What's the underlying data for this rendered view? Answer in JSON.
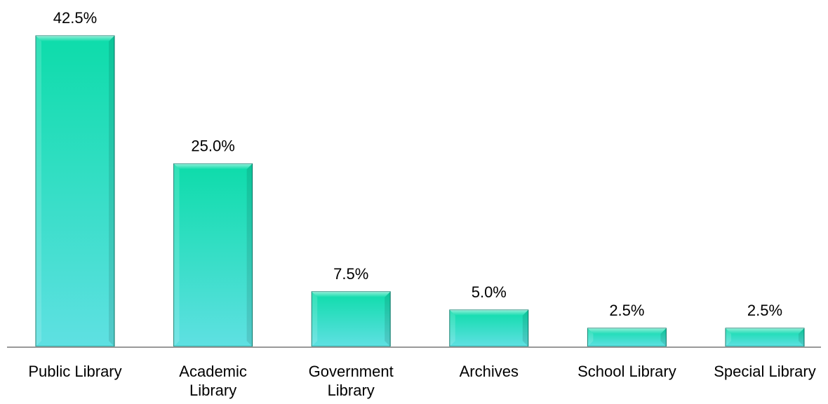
{
  "chart_data": {
    "type": "bar",
    "title": "",
    "xlabel": "",
    "ylabel": "",
    "categories": [
      [
        "Public Library"
      ],
      [
        "Academic",
        "Library"
      ],
      [
        "Government",
        "Library"
      ],
      [
        "Archives"
      ],
      [
        "School Library"
      ],
      [
        "Special Library"
      ]
    ],
    "values": [
      42.5,
      25.0,
      7.5,
      5.0,
      2.5,
      2.5
    ],
    "value_labels": [
      "42.5%",
      "25.0%",
      "7.5%",
      "5.0%",
      "2.5%",
      "2.5%"
    ],
    "ylim": [
      0,
      42.5
    ],
    "grid": false,
    "legend": "none",
    "colors": {
      "bar_top": "#0ddcaa",
      "bar_bottom": "#5fe0e2",
      "bar_edge": "#0a7a6a",
      "axis": "#999999"
    }
  }
}
